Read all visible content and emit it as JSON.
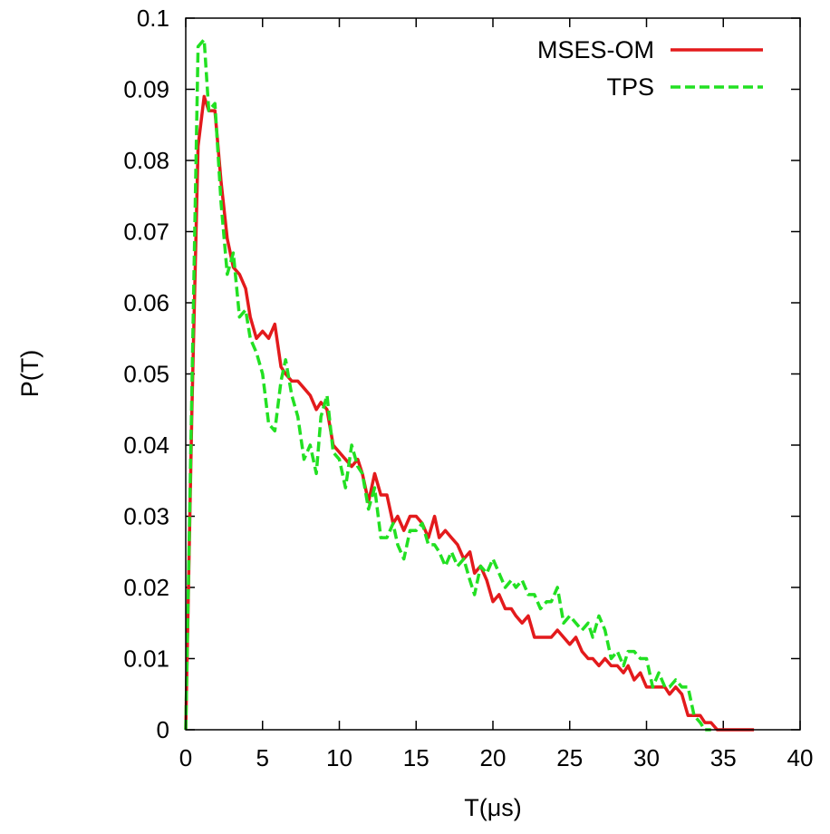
{
  "chart_data": {
    "type": "line",
    "title": "",
    "xlabel": "T(μs)",
    "ylabel": "P(T)",
    "xlim": [
      0,
      40
    ],
    "ylim": [
      0,
      0.1
    ],
    "xticks": [
      "0",
      "5",
      "10",
      "15",
      "20",
      "25",
      "30",
      "35",
      "40"
    ],
    "yticks": [
      "0",
      "0.01",
      "0.02",
      "0.03",
      "0.04",
      "0.05",
      "0.06",
      "0.07",
      "0.08",
      "0.09",
      "0.1"
    ],
    "grid": false,
    "legend_position": "top-right",
    "series": [
      {
        "name": "MSES-OM",
        "color": "#e31a1c",
        "dash": "solid",
        "x": [
          0,
          0.4,
          0.8,
          1.2,
          1.5,
          1.9,
          2.3,
          2.7,
          3.1,
          3.5,
          3.9,
          4.2,
          4.6,
          5.0,
          5.4,
          5.8,
          6.2,
          6.5,
          6.9,
          7.3,
          7.7,
          8.1,
          8.5,
          8.8,
          9.2,
          9.6,
          10.0,
          10.4,
          10.8,
          11.2,
          11.5,
          11.9,
          12.3,
          12.7,
          13.1,
          13.5,
          13.8,
          14.2,
          14.6,
          15.0,
          15.4,
          15.8,
          16.2,
          16.5,
          16.9,
          17.3,
          17.7,
          18.1,
          18.5,
          18.8,
          19.2,
          19.6,
          20.0,
          20.4,
          20.8,
          21.2,
          21.5,
          21.9,
          22.3,
          22.7,
          23.1,
          23.5,
          23.8,
          24.2,
          24.6,
          25.0,
          25.4,
          25.8,
          26.2,
          26.5,
          26.9,
          27.3,
          27.7,
          28.1,
          28.5,
          28.8,
          29.2,
          29.6,
          30.0,
          30.4,
          30.8,
          31.2,
          31.5,
          31.9,
          32.3,
          32.7,
          33.1,
          33.5,
          33.8,
          34.2,
          34.6,
          35.0,
          35.4,
          35.8,
          36.2,
          36.5,
          37.0
        ],
        "y": [
          0,
          0.045,
          0.082,
          0.089,
          0.087,
          0.087,
          0.077,
          0.069,
          0.065,
          0.064,
          0.062,
          0.058,
          0.055,
          0.056,
          0.055,
          0.057,
          0.051,
          0.05,
          0.049,
          0.049,
          0.048,
          0.047,
          0.045,
          0.046,
          0.045,
          0.04,
          0.039,
          0.038,
          0.037,
          0.038,
          0.036,
          0.032,
          0.036,
          0.033,
          0.033,
          0.029,
          0.03,
          0.028,
          0.03,
          0.03,
          0.029,
          0.027,
          0.03,
          0.027,
          0.028,
          0.027,
          0.026,
          0.024,
          0.025,
          0.022,
          0.023,
          0.021,
          0.018,
          0.019,
          0.017,
          0.017,
          0.016,
          0.015,
          0.016,
          0.013,
          0.013,
          0.013,
          0.013,
          0.014,
          0.013,
          0.012,
          0.013,
          0.011,
          0.01,
          0.01,
          0.009,
          0.01,
          0.009,
          0.009,
          0.008,
          0.009,
          0.007,
          0.008,
          0.006,
          0.006,
          0.006,
          0.006,
          0.005,
          0.006,
          0.005,
          0.002,
          0.002,
          0.002,
          0.001,
          0.001,
          0,
          0,
          0,
          0,
          0,
          0,
          0
        ]
      },
      {
        "name": "TPS",
        "color": "#22e022",
        "dash": "dashed",
        "x": [
          0,
          0.4,
          0.8,
          1.2,
          1.5,
          1.9,
          2.3,
          2.7,
          3.1,
          3.5,
          3.9,
          4.2,
          4.6,
          5.0,
          5.4,
          5.8,
          6.2,
          6.5,
          6.9,
          7.3,
          7.7,
          8.1,
          8.5,
          8.8,
          9.2,
          9.6,
          10.0,
          10.4,
          10.8,
          11.2,
          11.5,
          11.9,
          12.3,
          12.7,
          13.1,
          13.5,
          13.8,
          14.2,
          14.6,
          15.0,
          15.4,
          15.8,
          16.2,
          16.5,
          16.9,
          17.3,
          17.7,
          18.1,
          18.5,
          18.8,
          19.2,
          19.6,
          20.0,
          20.4,
          20.8,
          21.2,
          21.5,
          21.9,
          22.3,
          22.7,
          23.1,
          23.5,
          23.8,
          24.2,
          24.6,
          25.0,
          25.4,
          25.8,
          26.2,
          26.5,
          26.9,
          27.3,
          27.7,
          28.1,
          28.5,
          28.8,
          29.2,
          29.6,
          30.0,
          30.4,
          30.8,
          31.2,
          31.5,
          31.9,
          32.3,
          32.7,
          33.1,
          33.5,
          33.8,
          34.2
        ],
        "y": [
          0,
          0.048,
          0.096,
          0.097,
          0.087,
          0.088,
          0.074,
          0.064,
          0.067,
          0.058,
          0.059,
          0.055,
          0.053,
          0.05,
          0.043,
          0.042,
          0.049,
          0.052,
          0.047,
          0.044,
          0.038,
          0.04,
          0.036,
          0.044,
          0.047,
          0.039,
          0.038,
          0.034,
          0.04,
          0.037,
          0.036,
          0.031,
          0.034,
          0.027,
          0.027,
          0.029,
          0.026,
          0.024,
          0.028,
          0.028,
          0.029,
          0.026,
          0.026,
          0.025,
          0.023,
          0.025,
          0.023,
          0.024,
          0.021,
          0.019,
          0.023,
          0.022,
          0.024,
          0.022,
          0.02,
          0.021,
          0.02,
          0.021,
          0.019,
          0.019,
          0.017,
          0.018,
          0.018,
          0.02,
          0.015,
          0.016,
          0.015,
          0.014,
          0.015,
          0.013,
          0.016,
          0.014,
          0.01,
          0.011,
          0.009,
          0.011,
          0.011,
          0.01,
          0.01,
          0.006,
          0.008,
          0.006,
          0.006,
          0.007,
          0.006,
          0.006,
          0.002,
          0.001,
          0,
          0
        ]
      }
    ]
  }
}
